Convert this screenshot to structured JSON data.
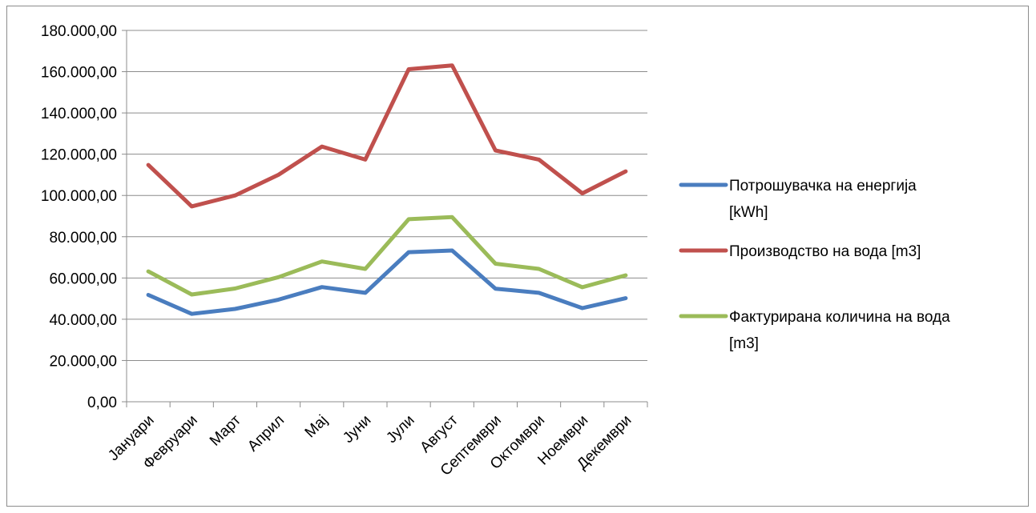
{
  "chart_data": {
    "type": "line",
    "categories": [
      "Јануари",
      "Февруари",
      "Март",
      "Април",
      "Мај",
      "Јуни",
      "Јули",
      "Август",
      "Септември",
      "Октомври",
      "Ноември",
      "Декември"
    ],
    "series": [
      {
        "name": "Потрошувачка на енергија [kWh]",
        "legend_lines": [
          "Потрошувачка на енергија",
          "[kWh]"
        ],
        "color": "#4a7dbf",
        "values": [
          51800,
          42600,
          45000,
          49500,
          55600,
          52800,
          72500,
          73300,
          54800,
          52800,
          45400,
          50200
        ]
      },
      {
        "name": "Производство на вода [m3]",
        "legend_lines": [
          "Производство на вода [m3]"
        ],
        "color": "#c0504d",
        "values": [
          114800,
          94700,
          100000,
          110000,
          123700,
          117400,
          161200,
          163000,
          121800,
          117400,
          101000,
          111700
        ]
      },
      {
        "name": "Фактурирана количина на вода [m3]",
        "legend_lines": [
          "Фактурирана количина на вода",
          "[m3]"
        ],
        "color": "#9bbb59",
        "values": [
          63200,
          52000,
          54900,
          60400,
          68000,
          64400,
          88500,
          89500,
          66900,
          64400,
          55500,
          61300
        ]
      }
    ],
    "y_ticks": [
      "0,00",
      "20.000,00",
      "40.000,00",
      "60.000,00",
      "80.000,00",
      "100.000,00",
      "120.000,00",
      "140.000,00",
      "160.000,00",
      "180.000,00"
    ],
    "ylim": [
      0,
      180000
    ],
    "grid": true,
    "legend_position": "right",
    "title": "",
    "xlabel": "",
    "ylabel": ""
  }
}
